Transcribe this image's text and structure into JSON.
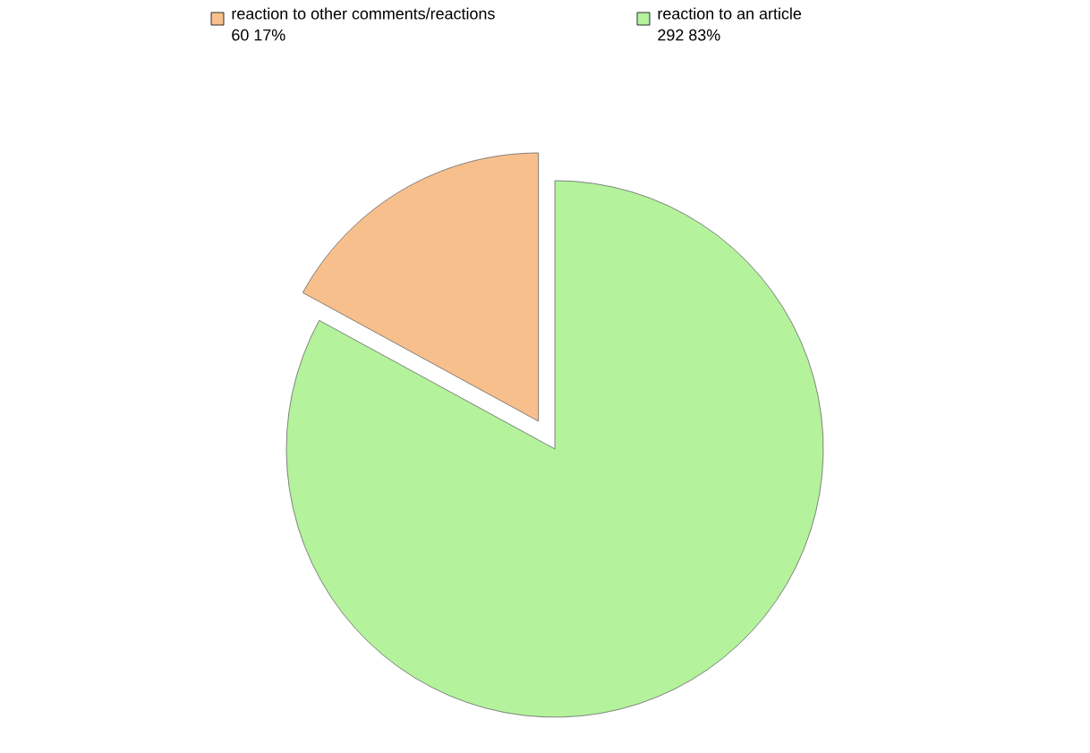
{
  "chart_data": {
    "type": "pie",
    "categories": [
      "reaction to other comments/reactions",
      "reaction to an article"
    ],
    "values": [
      60,
      292
    ],
    "colors": [
      "#f7bf8c",
      "#b4f29c"
    ],
    "value_labels": [
      "60 17%",
      "292 83%"
    ],
    "legend": "top"
  }
}
